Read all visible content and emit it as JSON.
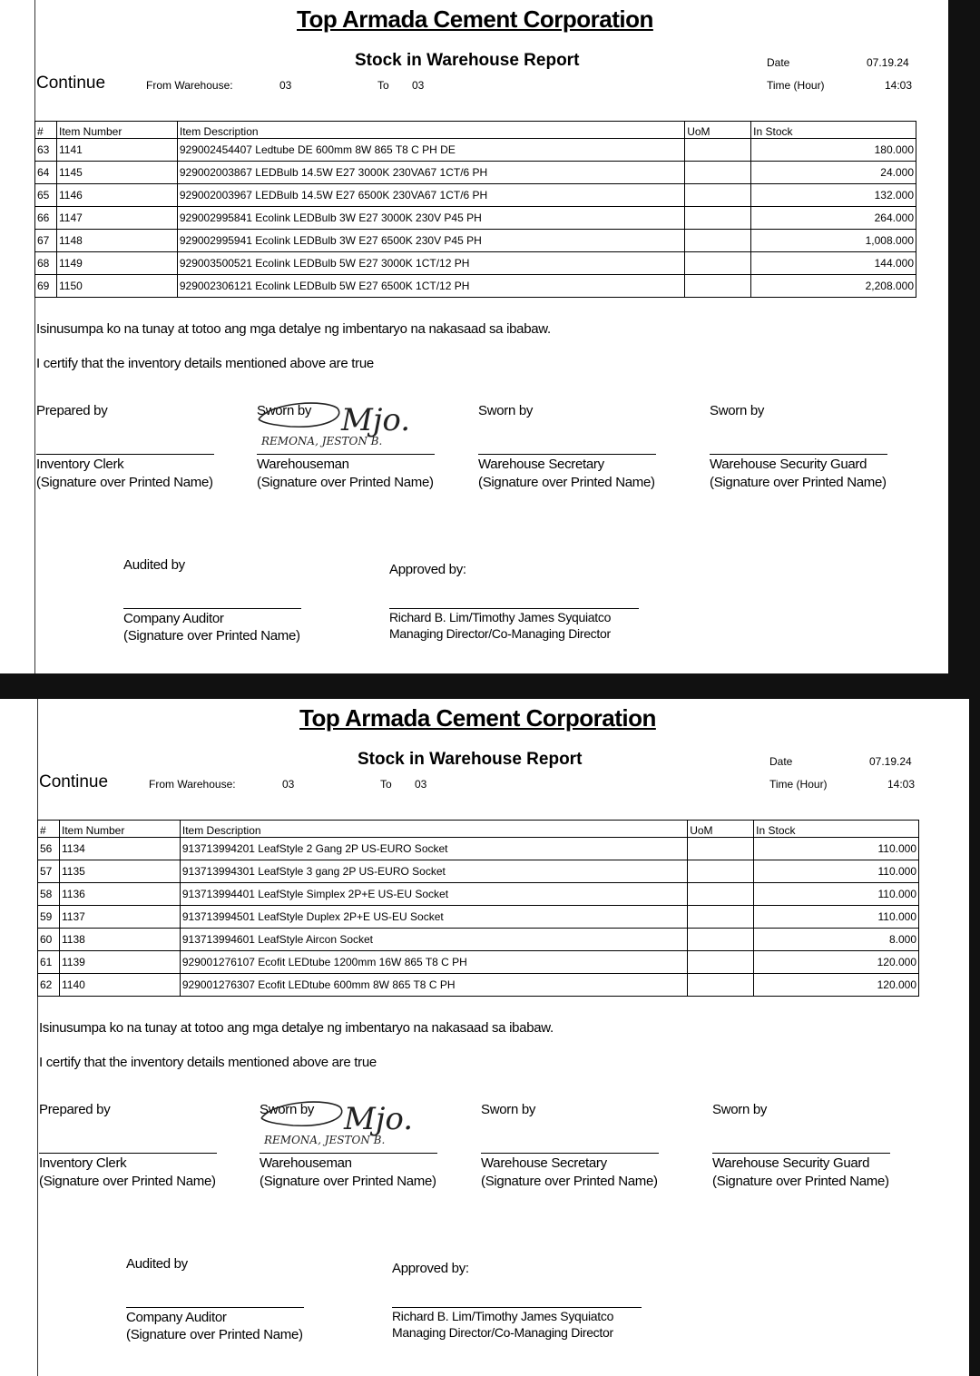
{
  "pages": [
    {
      "company": "Top Armada Cement Corporation",
      "report_title": "Stock in Warehouse Report",
      "continue_label": "Continue",
      "from_warehouse_label": "From Warehouse:",
      "from_warehouse": "03",
      "to_label": "To",
      "to_warehouse": "03",
      "date_label": "Date",
      "date": "07.19.24",
      "time_label": "Time (Hour)",
      "time": "14:03",
      "columns": [
        "#",
        "Item Number",
        "Item Description",
        "UoM",
        "In Stock"
      ],
      "rows": [
        {
          "no": "63",
          "item": "1141",
          "desc": "929002454407 Ledtube DE 600mm 8W 865 T8 C PH DE",
          "uom": "",
          "stock": "180.000"
        },
        {
          "no": "64",
          "item": "1145",
          "desc": "929002003867 LEDBulb 14.5W E27 3000K 230VA67 1CT/6 PH",
          "uom": "",
          "stock": "24.000"
        },
        {
          "no": "65",
          "item": "1146",
          "desc": "929002003967 LEDBulb 14.5W E27 6500K 230VA67 1CT/6 PH",
          "uom": "",
          "stock": "132.000"
        },
        {
          "no": "66",
          "item": "1147",
          "desc": "929002995841 Ecolink LEDBulb 3W E27 3000K 230V P45 PH",
          "uom": "",
          "stock": "264.000"
        },
        {
          "no": "67",
          "item": "1148",
          "desc": "929002995941 Ecolink LEDBulb 3W E27 6500K 230V P45 PH",
          "uom": "",
          "stock": "1,008.000"
        },
        {
          "no": "68",
          "item": "1149",
          "desc": "929003500521 Ecolink LEDBulb 5W E27 3000K 1CT/12 PH",
          "uom": "",
          "stock": "144.000"
        },
        {
          "no": "69",
          "item": "1150",
          "desc": "929002306121 Ecolink LEDBulb 5W E27 6500K 1CT/12 PH",
          "uom": "",
          "stock": "2,208.000"
        }
      ]
    },
    {
      "company": "Top Armada Cement Corporation",
      "report_title": "Stock in Warehouse Report",
      "continue_label": "Continue",
      "from_warehouse_label": "From Warehouse:",
      "from_warehouse": "03",
      "to_label": "To",
      "to_warehouse": "03",
      "date_label": "Date",
      "date": "07.19.24",
      "time_label": "Time (Hour)",
      "time": "14:03",
      "columns": [
        "#",
        "Item Number",
        "Item Description",
        "UoM",
        "In Stock"
      ],
      "rows": [
        {
          "no": "56",
          "item": "1134",
          "desc": "913713994201 LeafStyle 2 Gang 2P US-EURO Socket",
          "uom": "",
          "stock": "110.000"
        },
        {
          "no": "57",
          "item": "1135",
          "desc": "913713994301 LeafStyle 3 gang 2P US-EURO Socket",
          "uom": "",
          "stock": "110.000"
        },
        {
          "no": "58",
          "item": "1136",
          "desc": "913713994401 LeafStyle Simplex 2P+E US-EU Socket",
          "uom": "",
          "stock": "110.000"
        },
        {
          "no": "59",
          "item": "1137",
          "desc": "913713994501 LeafStyle Duplex 2P+E US-EU Socket",
          "uom": "",
          "stock": "110.000"
        },
        {
          "no": "60",
          "item": "1138",
          "desc": "913713994601 LeafStyle Aircon Socket",
          "uom": "",
          "stock": "8.000"
        },
        {
          "no": "61",
          "item": "1139",
          "desc": "929001276107 Ecofit LEDtube 1200mm 16W 865 T8 C PH",
          "uom": "",
          "stock": "120.000"
        },
        {
          "no": "62",
          "item": "1140",
          "desc": "929001276307 Ecofit LEDtube 600mm 8W 865 T8 C PH",
          "uom": "",
          "stock": "120.000"
        }
      ]
    }
  ],
  "oath_tagalog": "Isinusumpa ko na tunay at totoo ang mga detalye ng imbentaryo na nakasaad sa ibabaw.",
  "oath_english": "I certify that the inventory details mentioned above are true",
  "signatories": [
    {
      "label": "Prepared by",
      "role": "Inventory Clerk",
      "note": "(Signature over Printed Name)"
    },
    {
      "label": "Sworn by",
      "role": "Warehouseman",
      "note": "(Signature over Printed Name)"
    },
    {
      "label": "Sworn by",
      "role": "Warehouse Secretary",
      "note": "(Signature over Printed Name)"
    },
    {
      "label": "Sworn by",
      "role": "Warehouse Security Guard",
      "note": "(Signature over Printed Name)"
    }
  ],
  "auditor": {
    "label": "Audited by",
    "role": "Company Auditor",
    "note": "(Signature over Printed Name)"
  },
  "approver": {
    "label": "Approved by:",
    "names": "Richard B. Lim/Timothy James Syquiatco",
    "role": "Managing Director/Co-Managing Director"
  },
  "handwritten_signature": {
    "name": "REMONA, JESTON B.",
    "scribble": "Mjo."
  }
}
